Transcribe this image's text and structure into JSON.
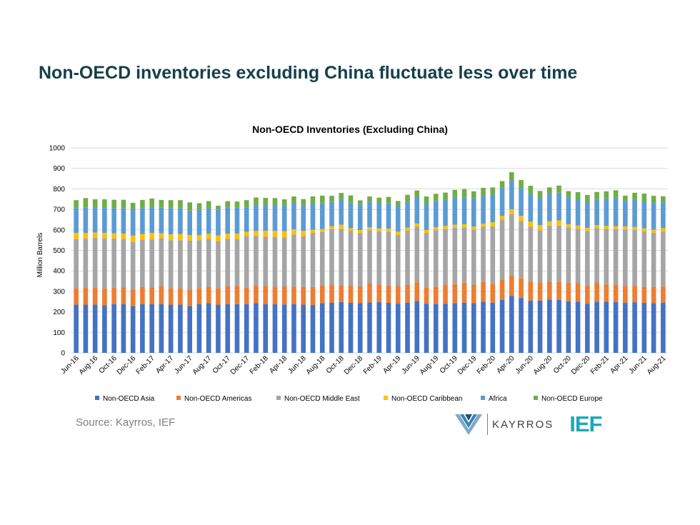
{
  "page": {
    "title": "Non-OECD inventories excluding China fluctuate less over time",
    "source": "Source: Kayrros, IEF",
    "logos": {
      "kayrros_text": "KAYRROS",
      "ief_text": "IEF"
    }
  },
  "chart_data": {
    "type": "bar",
    "stacked": true,
    "title": "Non-OECD Inventories (Excluding China)",
    "xlabel": "",
    "ylabel": "Million Barrels",
    "ylim": [
      0,
      1000
    ],
    "yticks": [
      0,
      100,
      200,
      300,
      400,
      500,
      600,
      700,
      800,
      900,
      1000
    ],
    "grid": true,
    "legend_position": "bottom",
    "categories": [
      "Jun-16",
      "Jul-16",
      "Aug-16",
      "Sep-16",
      "Oct-16",
      "Nov-16",
      "Dec-16",
      "Jan-17",
      "Feb-17",
      "Mar-17",
      "Apr-17",
      "May-17",
      "Jun-17",
      "Jul-17",
      "Aug-17",
      "Sep-17",
      "Oct-17",
      "Nov-17",
      "Dec-17",
      "Jan-18",
      "Feb-18",
      "Mar-18",
      "Apr-18",
      "May-18",
      "Jun-18",
      "Jul-18",
      "Aug-18",
      "Sep-18",
      "Oct-18",
      "Nov-18",
      "Dec-18",
      "Jan-19",
      "Feb-19",
      "Mar-19",
      "Apr-19",
      "May-19",
      "Jun-19",
      "Jul-19",
      "Aug-19",
      "Sep-19",
      "Oct-19",
      "Nov-19",
      "Dec-19",
      "Jan-20",
      "Feb-20",
      "Mar-20",
      "Apr-20",
      "May-20",
      "Jun-20",
      "Jul-20",
      "Aug-20",
      "Sep-20",
      "Oct-20",
      "Nov-20",
      "Dec-20",
      "Jan-21",
      "Feb-21",
      "Mar-21",
      "Apr-21",
      "May-21",
      "Jun-21",
      "Jul-21",
      "Aug-21"
    ],
    "tick_labels": [
      "Jun-16",
      "Aug-16",
      "Oct-16",
      "Dec-16",
      "Feb-17",
      "Apr-17",
      "Jun-17",
      "Aug-17",
      "Oct-17",
      "Dec-17",
      "Feb-18",
      "Apr-18",
      "Jun-18",
      "Aug-18",
      "Oct-18",
      "Dec-18",
      "Feb-19",
      "Apr-19",
      "Jun-19",
      "Aug-19",
      "Oct-19",
      "Dec-19",
      "Feb-20",
      "Apr-20",
      "Jun-20",
      "Aug-20",
      "Oct-20",
      "Dec-20",
      "Feb-21",
      "Apr-21",
      "Jun-21",
      "Aug-21"
    ],
    "series": [
      {
        "name": "Non-OECD Asia",
        "color": "#4472c4",
        "values": [
          235,
          235,
          235,
          232,
          238,
          237,
          228,
          237,
          237,
          238,
          235,
          235,
          228,
          237,
          242,
          235,
          238,
          238,
          238,
          242,
          238,
          237,
          236,
          238,
          235,
          234,
          242,
          245,
          248,
          244,
          242,
          246,
          248,
          244,
          240,
          245,
          253,
          240,
          238,
          239,
          243,
          245,
          243,
          250,
          245,
          258,
          278,
          268,
          255,
          255,
          260,
          258,
          252,
          250,
          240,
          250,
          250,
          248,
          245,
          247,
          244,
          243,
          245
        ]
      },
      {
        "name": "Non-OECD Americas",
        "color": "#ed7d31",
        "values": [
          80,
          82,
          82,
          82,
          80,
          82,
          82,
          85,
          83,
          86,
          80,
          80,
          80,
          78,
          80,
          80,
          88,
          88,
          82,
          88,
          88,
          85,
          88,
          85,
          88,
          87,
          88,
          88,
          82,
          84,
          82,
          92,
          86,
          85,
          86,
          86,
          90,
          80,
          85,
          95,
          92,
          97,
          90,
          95,
          92,
          100,
          98,
          97,
          92,
          88,
          85,
          88,
          90,
          88,
          90,
          93,
          85,
          85,
          82,
          80,
          78,
          78,
          78
        ]
      },
      {
        "name": "Non-OECD Middle East",
        "color": "#a5a5a5",
        "values": [
          240,
          240,
          245,
          245,
          240,
          235,
          230,
          230,
          235,
          235,
          235,
          235,
          240,
          235,
          235,
          230,
          230,
          230,
          250,
          240,
          240,
          245,
          240,
          255,
          245,
          265,
          260,
          270,
          275,
          268,
          260,
          260,
          258,
          262,
          250,
          265,
          273,
          265,
          275,
          270,
          275,
          270,
          268,
          270,
          280,
          290,
          300,
          278,
          268,
          255,
          275,
          275,
          270,
          268,
          265,
          265,
          270,
          270,
          275,
          272,
          270,
          265,
          270
        ]
      },
      {
        "name": "Non-OECD Caribbean",
        "color": "#ffc000",
        "values": [
          30,
          28,
          25,
          26,
          25,
          28,
          32,
          28,
          30,
          24,
          28,
          30,
          26,
          25,
          24,
          28,
          25,
          26,
          20,
          25,
          30,
          28,
          30,
          25,
          27,
          15,
          14,
          15,
          20,
          12,
          15,
          15,
          15,
          15,
          15,
          15,
          15,
          15,
          15,
          15,
          15,
          15,
          15,
          15,
          20,
          20,
          25,
          25,
          25,
          25,
          22,
          25,
          15,
          15,
          15,
          15,
          15,
          15,
          15,
          15,
          15,
          15,
          15
        ]
      },
      {
        "name": "Africa",
        "color": "#5b9bd5",
        "values": [
          120,
          125,
          120,
          122,
          122,
          123,
          130,
          126,
          127,
          125,
          127,
          125,
          120,
          123,
          123,
          125,
          127,
          126,
          120,
          125,
          125,
          125,
          125,
          125,
          125,
          127,
          125,
          120,
          125,
          125,
          125,
          125,
          125,
          125,
          125,
          125,
          125,
          125,
          128,
          128,
          135,
          132,
          137,
          135,
          135,
          135,
          140,
          135,
          135,
          135,
          135,
          135,
          130,
          128,
          125,
          127,
          133,
          135,
          125,
          132,
          130,
          130,
          126
        ]
      },
      {
        "name": "Non-OECD Europe",
        "color": "#70ad47",
        "values": [
          40,
          45,
          42,
          42,
          42,
          42,
          30,
          40,
          41,
          38,
          40,
          40,
          40,
          32,
          36,
          20,
          32,
          30,
          35,
          38,
          35,
          35,
          30,
          35,
          30,
          35,
          38,
          28,
          30,
          35,
          20,
          25,
          25,
          30,
          25,
          35,
          36,
          38,
          35,
          35,
          35,
          40,
          35,
          40,
          35,
          35,
          40,
          40,
          40,
          32,
          30,
          35,
          32,
          35,
          35,
          35,
          35,
          40,
          25,
          35,
          40,
          35,
          30
        ]
      }
    ]
  }
}
